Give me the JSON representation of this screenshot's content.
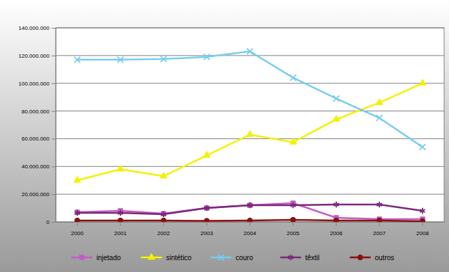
{
  "chart_data": {
    "type": "line",
    "categories": [
      "2000",
      "2001",
      "2002",
      "2003",
      "2004",
      "2005",
      "2006",
      "2007",
      "2008"
    ],
    "series": [
      {
        "name": "injetado",
        "color": "#c45cc4",
        "marker": "square",
        "values": [
          7000000,
          8000000,
          6000000,
          10000000,
          12000000,
          13500000,
          3000000,
          2000000,
          2000000
        ]
      },
      {
        "name": "sintético",
        "color": "#f2f200",
        "marker": "triangle",
        "values": [
          30000000,
          38000000,
          33000000,
          48000000,
          63000000,
          57500000,
          74000000,
          86000000,
          100000000
        ]
      },
      {
        "name": "couro",
        "color": "#78cdee",
        "marker": "x",
        "values": [
          117000000,
          117000000,
          117500000,
          119000000,
          123000000,
          104000000,
          89000000,
          75000000,
          54000000
        ]
      },
      {
        "name": "têxtil",
        "color": "#7a2a7a",
        "marker": "asterisk",
        "values": [
          6500000,
          6500000,
          5500000,
          10000000,
          12000000,
          12000000,
          12500000,
          12500000,
          8000000
        ]
      },
      {
        "name": "outros",
        "color": "#8b1010",
        "marker": "circle",
        "values": [
          1000000,
          1000000,
          1000000,
          800000,
          1000000,
          1500000,
          1000000,
          1000000,
          500000
        ]
      }
    ],
    "ylim": [
      0,
      140000000
    ],
    "yticks": [
      0,
      {
        "value": 20000000,
        "label": "20.000.000"
      },
      {
        "value": 40000000,
        "label": "40.000.000"
      },
      {
        "value": 60000000,
        "label": "60.000.000"
      },
      {
        "value": 80000000,
        "label": "80.000.000"
      },
      {
        "value": 100000000,
        "label": "100.000.000"
      },
      {
        "value": 120000000,
        "label": "120.000.000"
      },
      {
        "value": 140000000,
        "label": "140.000.000"
      }
    ],
    "grid": true,
    "legend": "bottom"
  }
}
